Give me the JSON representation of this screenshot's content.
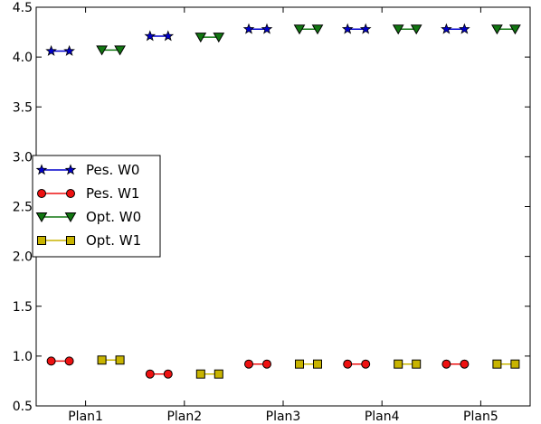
{
  "chart_data": {
    "type": "line",
    "title": "",
    "xlabel": "",
    "ylabel": "",
    "categories": [
      "Plan1",
      "Plan2",
      "Plan3",
      "Plan4",
      "Plan5"
    ],
    "ylim": [
      0.5,
      4.5
    ],
    "yticks": [
      "0.5",
      "1.0",
      "1.5",
      "2.0",
      "2.5",
      "3.0",
      "3.5",
      "4.0",
      "4.5"
    ],
    "grid": false,
    "legend_position": "center-left",
    "series": [
      {
        "name": "Pes. W0",
        "color": "#0000cc",
        "marker": "star",
        "offset_side": "left",
        "values": [
          4.06,
          4.21,
          4.28,
          4.28,
          4.28
        ]
      },
      {
        "name": "Pes. W1",
        "color": "#ee1111",
        "marker": "circle",
        "offset_side": "left",
        "values": [
          0.95,
          0.82,
          0.92,
          0.92,
          0.92
        ]
      },
      {
        "name": "Opt. W0",
        "color": "#117711",
        "marker": "triangle-down",
        "offset_side": "right",
        "values": [
          4.07,
          4.2,
          4.28,
          4.28,
          4.28
        ]
      },
      {
        "name": "Opt. W1",
        "color": "#c8b400",
        "marker": "square",
        "offset_side": "right",
        "values": [
          0.96,
          0.82,
          0.92,
          0.92,
          0.92
        ]
      }
    ]
  }
}
